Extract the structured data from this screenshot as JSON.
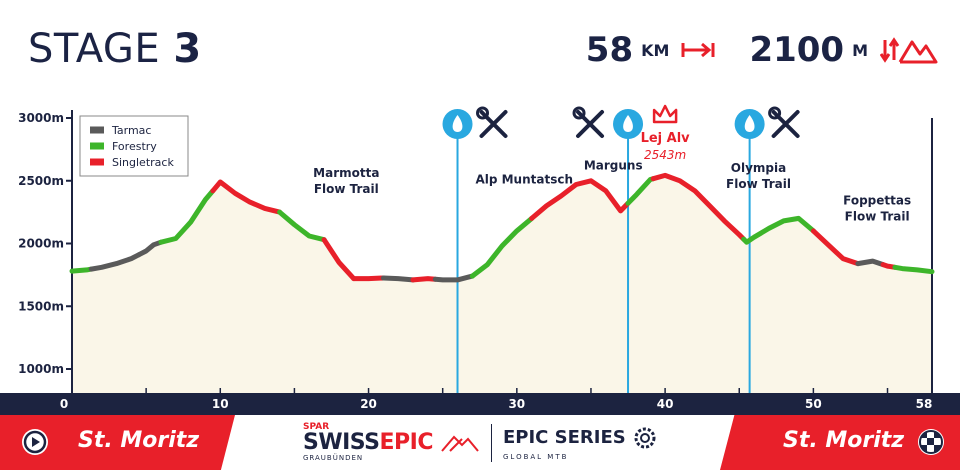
{
  "header": {
    "stage_word": "STAGE",
    "stage_number": "3",
    "distance_value": "58",
    "distance_unit": "KM",
    "elevation_value": "2100",
    "elevation_unit": "M"
  },
  "colors": {
    "navy": "#1c2340",
    "red": "#e8202a",
    "tarmac": "#5a5a5a",
    "forestry": "#3db52a",
    "singletrack": "#e8202a",
    "fill": "#faf6e8",
    "water": "#29a8e0"
  },
  "chart_data": {
    "type": "area",
    "ylim": [
      850,
      3000
    ],
    "xlim": [
      0,
      58
    ],
    "y_ticks": [
      1000,
      1500,
      2000,
      2500,
      3000
    ],
    "y_tick_labels": [
      "1000m",
      "1500m",
      "2000m",
      "2500m",
      "3000m"
    ],
    "x_ticks": [
      0,
      10,
      20,
      30,
      40,
      50,
      58
    ],
    "x_tick_labels": [
      "0",
      "10",
      "20",
      "30",
      "40",
      "50",
      "58"
    ],
    "legend": [
      {
        "name": "Tarmac",
        "color": "#5a5a5a"
      },
      {
        "name": "Forestry",
        "color": "#3db52a"
      },
      {
        "name": "Singletrack",
        "color": "#e8202a"
      }
    ],
    "legend_position": "top-left",
    "profile": [
      [
        0,
        1780
      ],
      [
        1,
        1790
      ],
      [
        2,
        1810
      ],
      [
        3,
        1840
      ],
      [
        4,
        1880
      ],
      [
        5,
        1940
      ],
      [
        5.5,
        1990
      ],
      [
        6,
        2010
      ],
      [
        7,
        2040
      ],
      [
        8,
        2170
      ],
      [
        9,
        2350
      ],
      [
        10,
        2490
      ],
      [
        11,
        2400
      ],
      [
        12,
        2330
      ],
      [
        13,
        2280
      ],
      [
        14,
        2250
      ],
      [
        15,
        2150
      ],
      [
        16,
        2060
      ],
      [
        17,
        2030
      ],
      [
        18,
        1850
      ],
      [
        19,
        1720
      ],
      [
        20,
        1720
      ],
      [
        21,
        1725
      ],
      [
        22,
        1720
      ],
      [
        23,
        1710
      ],
      [
        24,
        1720
      ],
      [
        25,
        1710
      ],
      [
        26,
        1710
      ],
      [
        27,
        1740
      ],
      [
        28,
        1830
      ],
      [
        29,
        1980
      ],
      [
        30,
        2100
      ],
      [
        31,
        2200
      ],
      [
        32,
        2300
      ],
      [
        33,
        2380
      ],
      [
        34,
        2470
      ],
      [
        35,
        2500
      ],
      [
        36,
        2420
      ],
      [
        37,
        2260
      ],
      [
        38,
        2380
      ],
      [
        39,
        2510
      ],
      [
        40,
        2543
      ],
      [
        41,
        2500
      ],
      [
        42,
        2420
      ],
      [
        43,
        2300
      ],
      [
        44,
        2180
      ],
      [
        45,
        2070
      ],
      [
        45.5,
        2010
      ],
      [
        46,
        2050
      ],
      [
        47,
        2120
      ],
      [
        48,
        2180
      ],
      [
        49,
        2200
      ],
      [
        50,
        2100
      ],
      [
        51,
        1990
      ],
      [
        52,
        1880
      ],
      [
        53,
        1840
      ],
      [
        54,
        1860
      ],
      [
        55,
        1820
      ],
      [
        56,
        1800
      ],
      [
        57,
        1790
      ],
      [
        58,
        1775
      ]
    ],
    "segments": [
      {
        "from": 0,
        "to": 1.3,
        "surface": "Forestry"
      },
      {
        "from": 1.3,
        "to": 4.5,
        "surface": "Tarmac"
      },
      {
        "from": 4.5,
        "to": 6,
        "surface": "Tarmac"
      },
      {
        "from": 6,
        "to": 9.5,
        "surface": "Forestry"
      },
      {
        "from": 9.5,
        "to": 14,
        "surface": "Singletrack"
      },
      {
        "from": 14,
        "to": 17,
        "surface": "Forestry"
      },
      {
        "from": 17,
        "to": 19,
        "surface": "Singletrack"
      },
      {
        "from": 19,
        "to": 21,
        "surface": "Singletrack"
      },
      {
        "from": 21,
        "to": 23,
        "surface": "Tarmac"
      },
      {
        "from": 23,
        "to": 24.5,
        "surface": "Singletrack"
      },
      {
        "from": 24.5,
        "to": 27,
        "surface": "Tarmac"
      },
      {
        "from": 27,
        "to": 31,
        "surface": "Forestry"
      },
      {
        "from": 31,
        "to": 37.5,
        "surface": "Singletrack"
      },
      {
        "from": 37.5,
        "to": 39.2,
        "surface": "Forestry"
      },
      {
        "from": 39.2,
        "to": 45.3,
        "surface": "Singletrack"
      },
      {
        "from": 45.3,
        "to": 50,
        "surface": "Forestry"
      },
      {
        "from": 50,
        "to": 53,
        "surface": "Singletrack"
      },
      {
        "from": 53,
        "to": 54.7,
        "surface": "Tarmac"
      },
      {
        "from": 54.7,
        "to": 55.5,
        "surface": "Singletrack"
      },
      {
        "from": 55.5,
        "to": 58,
        "surface": "Forestry"
      }
    ],
    "feed_zones": [
      26,
      37.5,
      45.7
    ],
    "summit": {
      "x": 40,
      "name": "Lej Alv",
      "elev_label": "2543m"
    },
    "annotations": [
      {
        "x": 18.5,
        "y": 2530,
        "lines": [
          "Marmotta",
          "Flow Trail"
        ]
      },
      {
        "x": 30.5,
        "y": 2480,
        "lines": [
          "Alp Muntatsch"
        ]
      },
      {
        "x": 36.5,
        "y": 2590,
        "lines": [
          "Marguns"
        ]
      },
      {
        "x": 46.3,
        "y": 2570,
        "lines": [
          "Olympia",
          "Flow Trail"
        ]
      },
      {
        "x": 54.3,
        "y": 2310,
        "lines": [
          "Foppettas",
          "Flow Trail"
        ]
      }
    ]
  },
  "footer": {
    "start_town": "St. Moritz",
    "finish_town": "St. Moritz",
    "spar_label": "SPAR",
    "swiss_label": "SWISS",
    "epic_label": "EPIC",
    "graubunden_label": "GRAUBÜNDEN",
    "epic_series_label": "EPIC SERIES",
    "global_mtb_label": "GLOBAL MTB"
  }
}
